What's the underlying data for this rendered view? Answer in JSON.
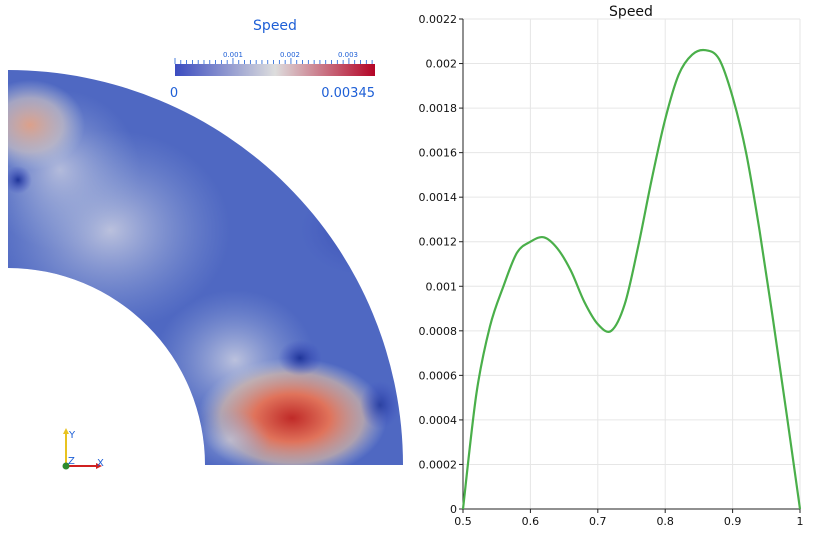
{
  "render_view": {
    "colorbar": {
      "title": "Speed",
      "min_label": "0",
      "max_label": "0.00345",
      "minor_labels": [
        "0.001",
        "0.002",
        "0.003"
      ],
      "min_value": 0,
      "max_value": 0.00345,
      "colors": [
        "#3b4cc0",
        "#dddddd",
        "#b40426"
      ]
    },
    "orientation_axes": {
      "y": "Y",
      "z": "Z",
      "x": "X"
    }
  },
  "chart_data": {
    "type": "line",
    "title": "Speed",
    "xlabel": "",
    "ylabel": "",
    "xlim": [
      0.5,
      1
    ],
    "ylim": [
      0,
      0.0022
    ],
    "x_ticks": [
      "0.5",
      "0.6",
      "0.7",
      "0.8",
      "0.9",
      "1"
    ],
    "y_ticks": [
      "0",
      "0.0002",
      "0.0004",
      "0.0006",
      "0.0008",
      "0.001",
      "0.0012",
      "0.0014",
      "0.0016",
      "0.0018",
      "0.002",
      "0.0022"
    ],
    "grid": true,
    "series": [
      {
        "color": "#4aaf4a",
        "x": [
          0.5,
          0.52,
          0.54,
          0.56,
          0.58,
          0.6,
          0.62,
          0.64,
          0.66,
          0.68,
          0.7,
          0.72,
          0.74,
          0.76,
          0.78,
          0.8,
          0.82,
          0.84,
          0.86,
          0.88,
          0.9,
          0.92,
          0.94,
          0.96,
          0.98,
          1.0
        ],
        "y": [
          0,
          0.00052,
          0.00082,
          0.001,
          0.00115,
          0.0012,
          0.00122,
          0.00117,
          0.00107,
          0.00093,
          0.00083,
          0.0008,
          0.00092,
          0.00118,
          0.00148,
          0.00175,
          0.00195,
          0.00204,
          0.00206,
          0.00202,
          0.00185,
          0.0016,
          0.00125,
          0.00085,
          0.00043,
          0
        ]
      }
    ]
  }
}
